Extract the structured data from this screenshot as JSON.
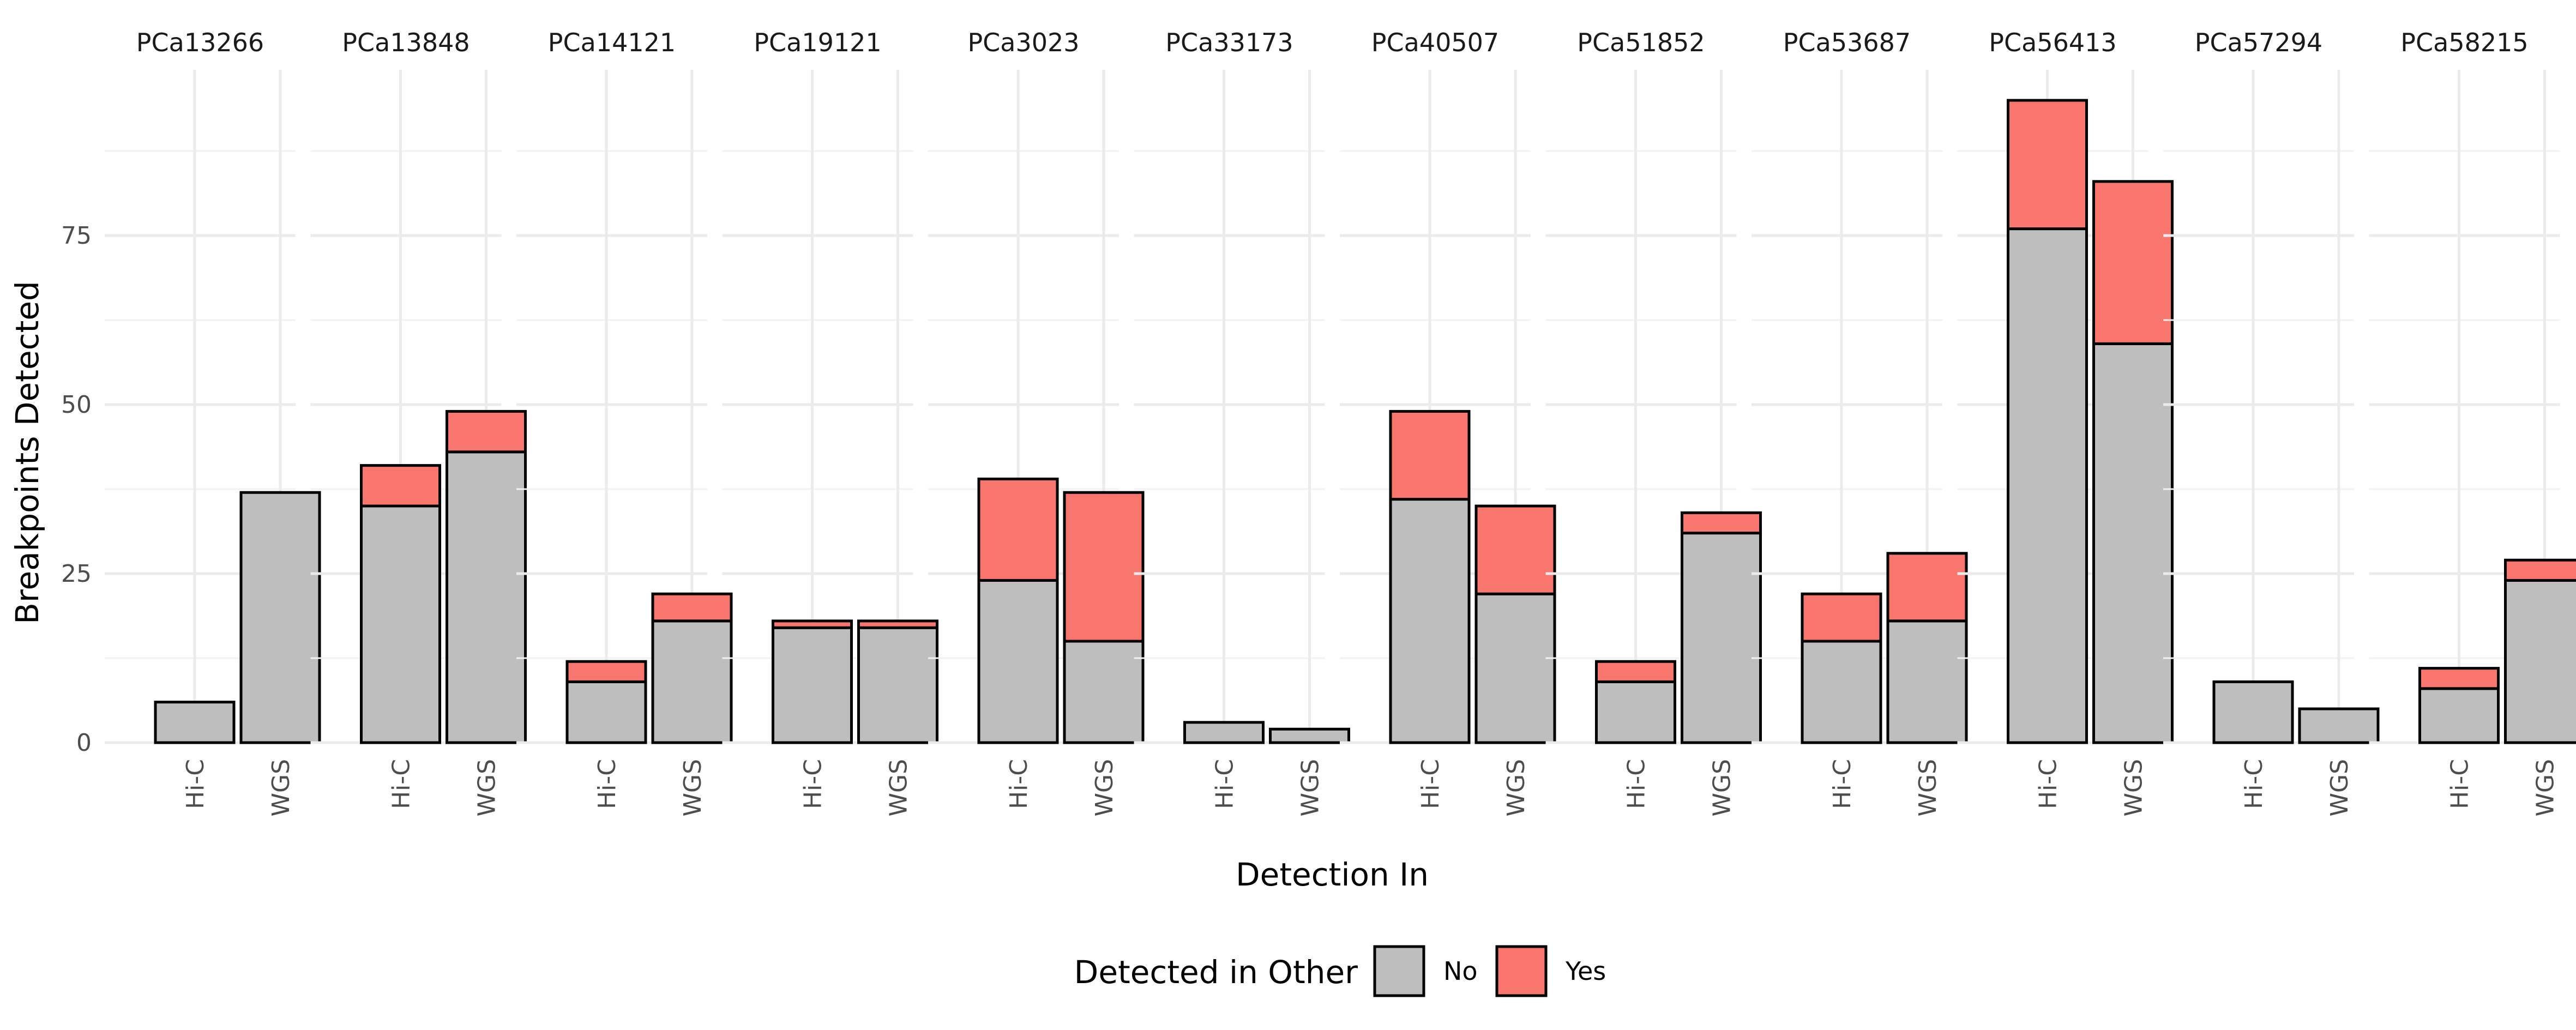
{
  "chart_data": {
    "type": "bar",
    "stacked": true,
    "facet_by": "sample",
    "facets": [
      "PCa13266",
      "PCa13848",
      "PCa14121",
      "PCa19121",
      "PCa3023",
      "PCa33173",
      "PCa40507",
      "PCa51852",
      "PCa53687",
      "PCa56413",
      "PCa57294",
      "PCa58215"
    ],
    "categories": [
      "Hi-C",
      "WGS"
    ],
    "series": [
      {
        "name": "No",
        "color": "#bebebe",
        "values": [
          [
            6,
            37
          ],
          [
            35,
            43
          ],
          [
            9,
            18
          ],
          [
            17,
            17
          ],
          [
            24,
            15
          ],
          [
            3,
            2
          ],
          [
            36,
            22
          ],
          [
            9,
            31
          ],
          [
            15,
            18
          ],
          [
            76,
            59
          ],
          [
            9,
            5
          ],
          [
            8,
            24
          ]
        ]
      },
      {
        "name": "Yes",
        "color": "#f8766d",
        "values": [
          [
            0,
            0
          ],
          [
            6,
            6
          ],
          [
            3,
            4
          ],
          [
            1,
            1
          ],
          [
            15,
            22
          ],
          [
            0,
            0
          ],
          [
            13,
            13
          ],
          [
            3,
            3
          ],
          [
            7,
            10
          ],
          [
            19,
            24
          ],
          [
            0,
            0
          ],
          [
            3,
            3
          ]
        ]
      }
    ],
    "xlabel": "Detection In",
    "ylabel": "Breakpoints Detected",
    "ylim": [
      0,
      95
    ],
    "yticks": [
      0,
      25,
      50,
      75
    ],
    "grid": true,
    "legend": {
      "title": "Detected in Other",
      "position": "bottom"
    }
  }
}
